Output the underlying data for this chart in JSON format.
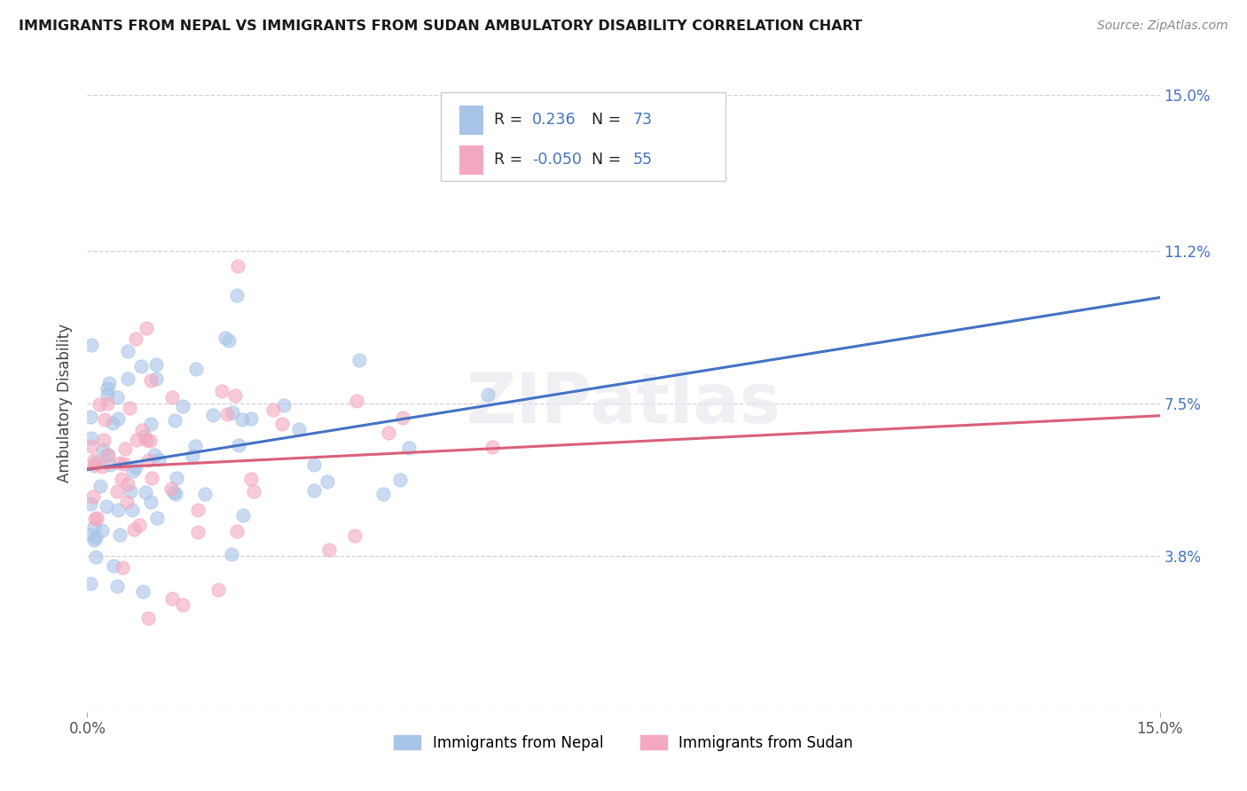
{
  "title": "IMMIGRANTS FROM NEPAL VS IMMIGRANTS FROM SUDAN AMBULATORY DISABILITY CORRELATION CHART",
  "source": "Source: ZipAtlas.com",
  "xlim": [
    0.0,
    15.0
  ],
  "ylim": [
    0.0,
    15.0
  ],
  "ylabel_ticks": [
    0.0,
    3.8,
    7.5,
    11.2,
    15.0
  ],
  "ylabel": "Ambulatory Disability",
  "nepal_R": 0.236,
  "nepal_N": 73,
  "sudan_R": -0.05,
  "sudan_N": 55,
  "nepal_color": "#a8c4e8",
  "sudan_color": "#f4a8bf",
  "trend_nepal_color": "#4472c4",
  "trend_sudan_color": "#d9607a",
  "label_color": "#4472c4",
  "grid_color": "#d0d0e0",
  "watermark": "ZIPatlas",
  "nepal_seed": 99,
  "sudan_seed": 77,
  "nepal_x_exp_scale": 1.2,
  "sudan_x_exp_scale": 1.5,
  "nepal_y_mean": 6.0,
  "nepal_y_std": 1.6,
  "sudan_y_mean": 6.2,
  "sudan_y_std": 1.8
}
